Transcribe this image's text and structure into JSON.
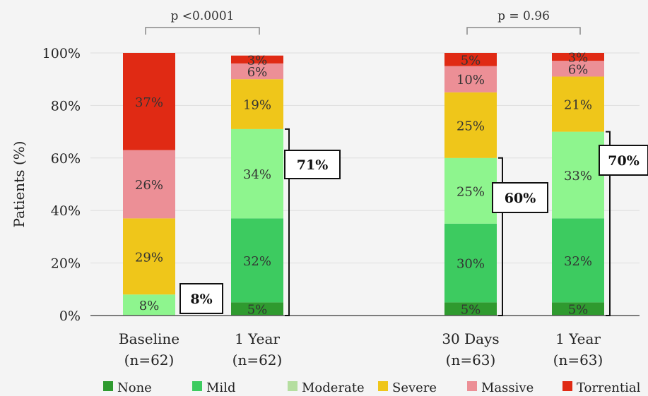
{
  "chart_data": {
    "type": "bar",
    "stacked": true,
    "ylabel": "Patients (%)",
    "ylim": [
      0,
      100
    ],
    "yticks": [
      "0%",
      "20%",
      "40%",
      "60%",
      "80%",
      "100%"
    ],
    "grid": true,
    "legend_position": "bottom",
    "categories": [
      {
        "line1": "Baseline",
        "line2": "(n=62)"
      },
      {
        "line1": "1 Year",
        "line2": "(n=62)"
      },
      {
        "line1": "30 Days",
        "line2": "(n=63)"
      },
      {
        "line1": "1 Year",
        "line2": "(n=63)"
      }
    ],
    "series": [
      {
        "name": "None",
        "color": "#2f9a2f",
        "values": [
          0,
          5,
          5,
          5
        ],
        "labels": [
          "",
          "5%",
          "5%",
          "5%"
        ]
      },
      {
        "name": "Mild",
        "color": "#3dcb60",
        "values": [
          0,
          32,
          30,
          32
        ],
        "labels": [
          "",
          "32%",
          "30%",
          "32%"
        ]
      },
      {
        "name": "Moderate",
        "color": "#8ef58e",
        "values": [
          8,
          34,
          25,
          33
        ],
        "labels": [
          "8%",
          "34%",
          "25%",
          "33%"
        ]
      },
      {
        "name": "Severe",
        "color": "#efc61a",
        "values": [
          29,
          19,
          25,
          21
        ],
        "labels": [
          "29%",
          "19%",
          "25%",
          "21%"
        ]
      },
      {
        "name": "Massive",
        "color": "#ec8f96",
        "values": [
          26,
          6,
          10,
          6
        ],
        "labels": [
          "26%",
          "6%",
          "10%",
          "6%"
        ]
      },
      {
        "name": "Torrential",
        "color": "#e02a14",
        "values": [
          37,
          3,
          5,
          3
        ],
        "labels": [
          "37%",
          "3%",
          "5%",
          "3%"
        ]
      }
    ],
    "legend_colors": {
      "Moderate": "#b5dea0"
    },
    "callouts": [
      {
        "bar": 0,
        "text": "8%",
        "from": 0,
        "to": 8
      },
      {
        "bar": 1,
        "text": "71%",
        "from": 0,
        "to": 71
      },
      {
        "bar": 2,
        "text": "60%",
        "from": 0,
        "to": 60
      },
      {
        "bar": 3,
        "text": "70%",
        "from": 0,
        "to": 70
      }
    ],
    "comparisons": [
      {
        "bars": [
          0,
          1
        ],
        "text": "p <0.0001"
      },
      {
        "bars": [
          2,
          3
        ],
        "text": "p = 0.96"
      }
    ]
  }
}
